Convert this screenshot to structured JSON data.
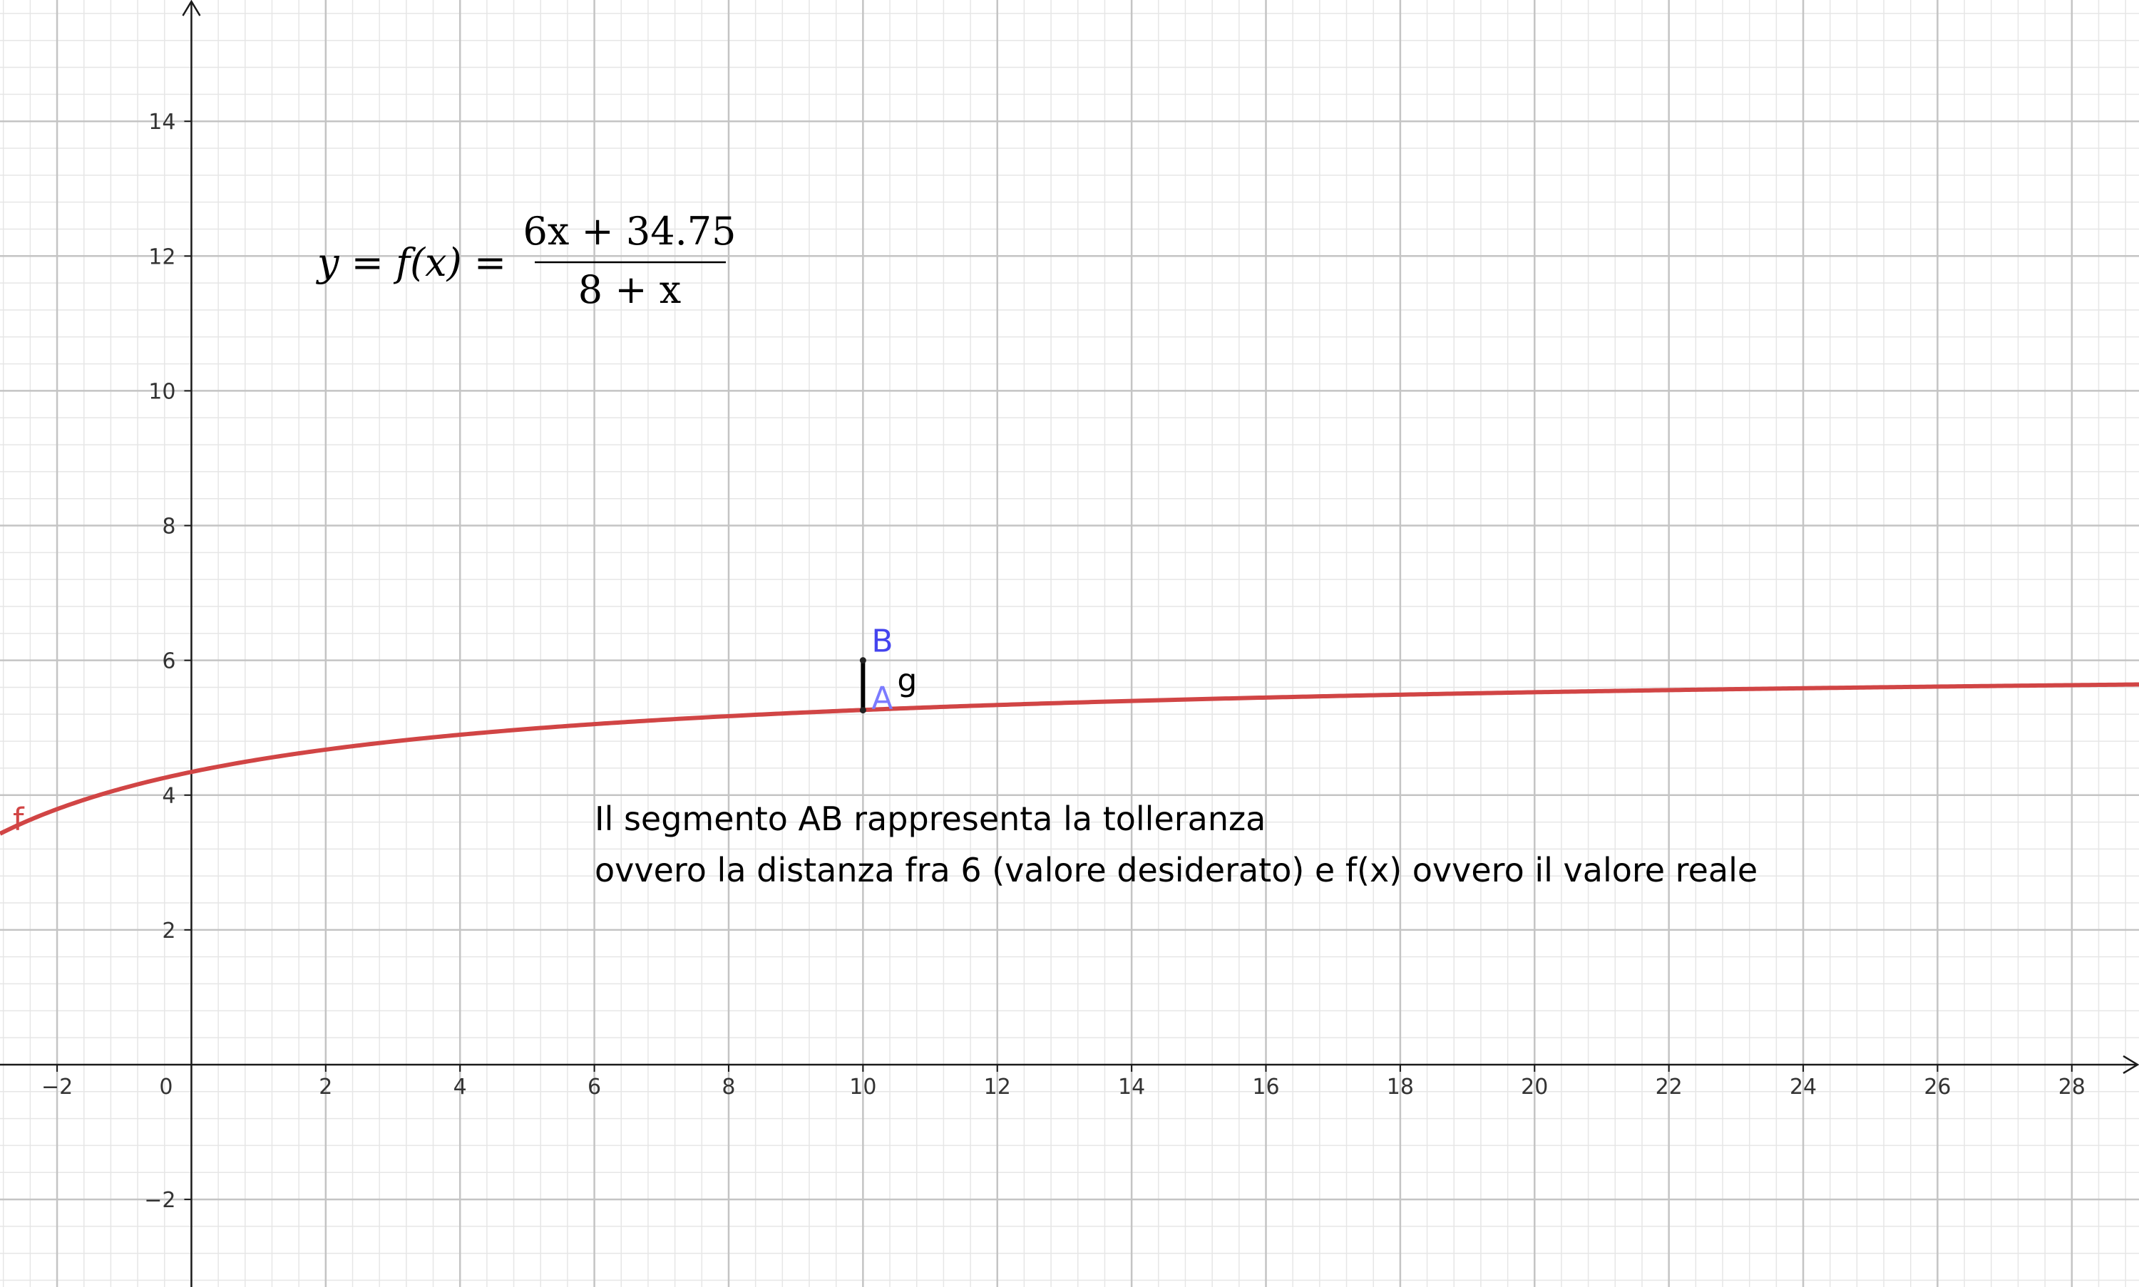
{
  "chart_data": {
    "type": "line",
    "title": "",
    "xlabel": "",
    "ylabel": "",
    "xlim": [
      -2.85,
      29
    ],
    "ylim": [
      -3.3,
      15.8
    ],
    "grid": true,
    "x_ticks": [
      -2,
      2,
      4,
      6,
      8,
      10,
      12,
      14,
      16,
      18,
      20,
      22,
      24,
      26,
      28
    ],
    "y_ticks": [
      -2,
      2,
      4,
      6,
      8,
      10,
      12,
      14
    ],
    "x_tick_labels": [
      "−2",
      "2",
      "4",
      "6",
      "8",
      "10",
      "12",
      "14",
      "16",
      "18",
      "20",
      "22",
      "24",
      "26",
      "28"
    ],
    "y_tick_labels": [
      "−2",
      "2",
      "4",
      "6",
      "8",
      "10",
      "12",
      "14"
    ],
    "origin_label": "0",
    "function": {
      "name": "f",
      "formula": {
        "lhs": "y = f(x) =",
        "numerator": "6x + 34.75",
        "denominator": "8 + x"
      },
      "coefficients": {
        "a": 6,
        "b": 34.75,
        "c": 8
      },
      "color": "#d14545",
      "x": [
        -2.85,
        -2,
        0,
        2,
        4,
        6,
        8,
        10,
        12,
        14,
        16,
        18,
        20,
        22,
        24,
        26,
        28,
        29
      ],
      "y": [
        3.43,
        3.79,
        4.34,
        4.68,
        4.9,
        5.05,
        5.17,
        5.26,
        5.34,
        5.4,
        5.45,
        5.49,
        5.53,
        5.56,
        5.59,
        5.61,
        5.63,
        5.64
      ]
    },
    "points": [
      {
        "name": "A",
        "x": 10,
        "y": 5.26,
        "color": "#7b7bff"
      },
      {
        "name": "B",
        "x": 10,
        "y": 6,
        "color": "#4444ee"
      }
    ],
    "segment": {
      "name": "g",
      "from": "A",
      "to": "B",
      "color": "#000000"
    },
    "annotation": [
      "Il segmento AB rappresenta la tolleranza",
      "ovvero la distanza fra 6 (valore desiderato) e f(x) ovvero il valore reale"
    ]
  }
}
